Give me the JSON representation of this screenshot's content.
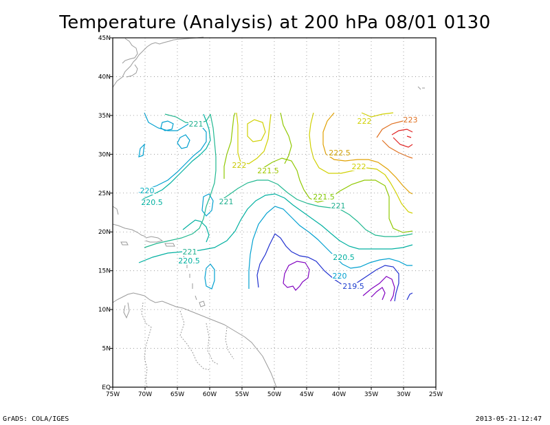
{
  "title": "Temperature (Analysis) at 200 hPa 08/01 0130",
  "footer": {
    "left": "GrADS: COLA/IGES",
    "right": "2013-05-21-12:47"
  },
  "map": {
    "lon_range": [
      -75,
      -25
    ],
    "lat_range": [
      0,
      45
    ],
    "grid": "dotted",
    "lon_ticks": [
      "75W",
      "70W",
      "65W",
      "60W",
      "55W",
      "50W",
      "45W",
      "40W",
      "35W",
      "30W",
      "25W"
    ],
    "lat_ticks": [
      "EQ",
      "5N",
      "10N",
      "15N",
      "20N",
      "25N",
      "30N",
      "35N",
      "40N",
      "45N"
    ]
  },
  "contour_labels": [
    {
      "text": "221",
      "color": "#20b090"
    },
    {
      "text": "222",
      "color": "#c8c800"
    },
    {
      "text": "223",
      "color": "#e07020"
    },
    {
      "text": "222.5",
      "color": "#d0a000"
    },
    {
      "text": "221.5",
      "color": "#a0c800"
    },
    {
      "text": "222",
      "color": "#d0d000"
    },
    {
      "text": "222",
      "color": "#d0d000"
    },
    {
      "text": "220",
      "color": "#00b0c0"
    },
    {
      "text": "220.5",
      "color": "#00b0a0"
    },
    {
      "text": "221",
      "color": "#20b090"
    },
    {
      "text": "221.5",
      "color": "#80c800"
    },
    {
      "text": "221",
      "color": "#20b090"
    },
    {
      "text": "221",
      "color": "#20b090"
    },
    {
      "text": "220.5",
      "color": "#00b0a0"
    },
    {
      "text": "220.5",
      "color": "#00b0a0"
    },
    {
      "text": "220",
      "color": "#00a0d0"
    },
    {
      "text": "219.5",
      "color": "#2040d0"
    }
  ],
  "colors": {
    "coast": "#9a9a9a",
    "c219": "#8000c0",
    "c219_5": "#2030d0",
    "c220": "#00a0d0",
    "c220_5": "#00b0a0",
    "c221": "#20b890",
    "c221_5": "#90c800",
    "c222": "#d0d000",
    "c222_5": "#e0a000",
    "c223": "#e07020",
    "c223_5": "#e02020"
  }
}
